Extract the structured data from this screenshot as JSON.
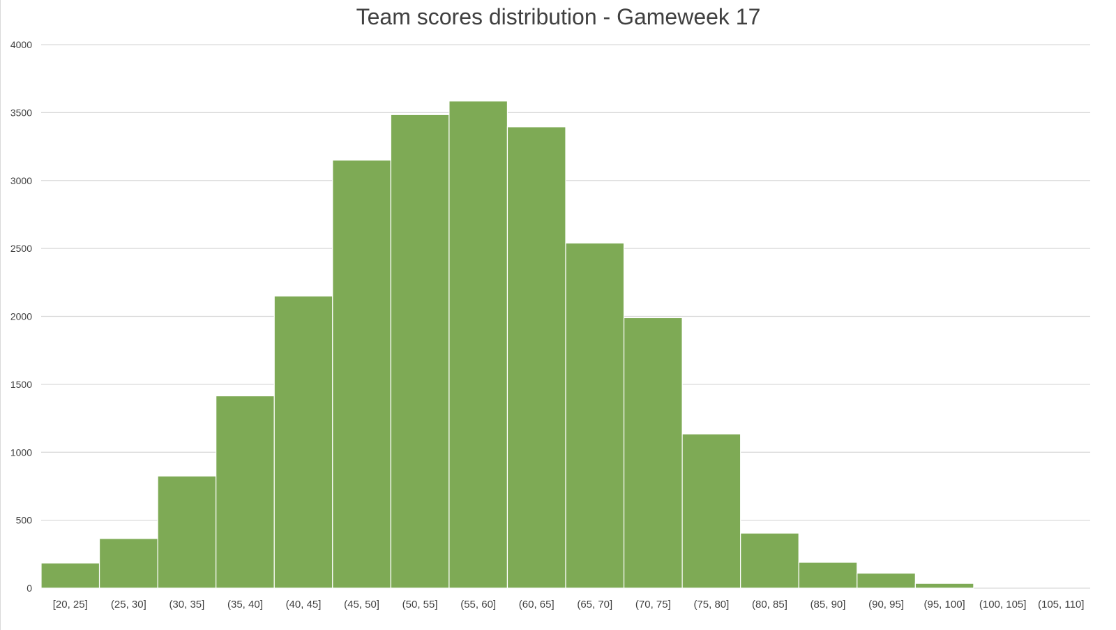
{
  "chart_data": {
    "type": "bar",
    "title": "Team scores distribution - Gameweek 17",
    "xlabel": "",
    "ylabel": "",
    "categories": [
      "[20, 25]",
      "(25, 30]",
      "(30, 35]",
      "(35, 40]",
      "(40, 45]",
      "(45, 50]",
      "(50, 55]",
      "(55, 60]",
      "(60, 65]",
      "(65, 70]",
      "(70, 75]",
      "(75, 80]",
      "(80, 85]",
      "(85, 90]",
      "(90, 95]",
      "(95, 100]",
      "(100, 105]",
      "(105, 110]"
    ],
    "values": [
      185,
      365,
      825,
      1415,
      2150,
      3150,
      3485,
      3585,
      3395,
      2540,
      1990,
      1135,
      405,
      190,
      110,
      35,
      0,
      0
    ],
    "ylim": [
      0,
      4000
    ],
    "yticks": [
      0,
      500,
      1000,
      1500,
      2000,
      2500,
      3000,
      3500,
      4000
    ],
    "grid": true,
    "legend": "none",
    "colors": {
      "bar": "#7eaa55",
      "bar_edge": "#ffffff",
      "grid": "#d9d9d9",
      "text": "#404040"
    }
  }
}
